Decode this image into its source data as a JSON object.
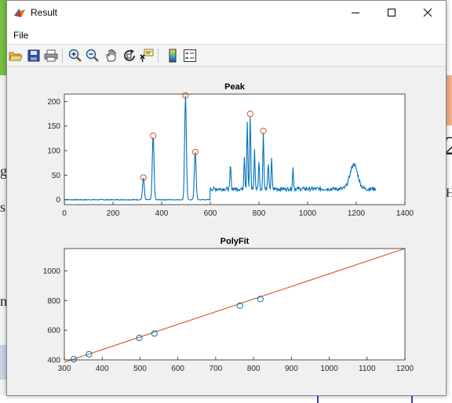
{
  "window": {
    "title": "Result",
    "minimize_icon": "minimize-icon",
    "maximize_icon": "maximize-icon",
    "close_icon": "close-icon"
  },
  "menu": {
    "file": "File"
  },
  "toolbar": {
    "tools": [
      "open-icon",
      "save-icon",
      "print-icon",
      "zoom-in-icon",
      "zoom-out-icon",
      "pan-icon",
      "rotate-3d-icon",
      "data-cursor-icon",
      "colorbar-icon",
      "legend-icon"
    ]
  },
  "background": {
    "glyph_g": "g",
    "glyph_s": "s",
    "glyph_n": "n",
    "glyph_2": "2",
    "glyph_h": "H"
  },
  "colors": {
    "line": "#0072bd",
    "marker": "#d95319",
    "fit": "#d95319",
    "axes_bg": "#ffffff",
    "figure_bg": "#f0f0f0"
  },
  "chart_data": [
    {
      "type": "line",
      "title": "Peak",
      "xlim": [
        0,
        1400
      ],
      "ylim": [
        -10,
        215
      ],
      "xticks": [
        0,
        200,
        400,
        600,
        800,
        1000,
        1200,
        1400
      ],
      "yticks": [
        0,
        50,
        100,
        150,
        200
      ],
      "grid": false,
      "peaks": [
        {
          "x": 325,
          "y": 45
        },
        {
          "x": 365,
          "y": 130
        },
        {
          "x": 498,
          "y": 212
        },
        {
          "x": 538,
          "y": 97
        },
        {
          "x": 764,
          "y": 175
        },
        {
          "x": 818,
          "y": 140
        }
      ],
      "baseline_segments": [
        {
          "x": [
            0,
            600
          ],
          "y": 0
        },
        {
          "x": [
            600,
            1280
          ],
          "y": 22
        }
      ],
      "spectrum_peaks": [
        {
          "x": 325,
          "y": 45,
          "w": 5
        },
        {
          "x": 365,
          "y": 130,
          "w": 5
        },
        {
          "x": 498,
          "y": 212,
          "w": 5
        },
        {
          "x": 538,
          "y": 97,
          "w": 5
        },
        {
          "x": 683,
          "y": 70,
          "w": 3
        },
        {
          "x": 740,
          "y": 90,
          "w": 3
        },
        {
          "x": 752,
          "y": 160,
          "w": 3
        },
        {
          "x": 764,
          "y": 170,
          "w": 3
        },
        {
          "x": 782,
          "y": 100,
          "w": 3
        },
        {
          "x": 800,
          "y": 80,
          "w": 3
        },
        {
          "x": 818,
          "y": 138,
          "w": 3
        },
        {
          "x": 838,
          "y": 75,
          "w": 3
        },
        {
          "x": 852,
          "y": 82,
          "w": 3
        },
        {
          "x": 940,
          "y": 65,
          "w": 3
        },
        {
          "x": 1190,
          "y": 72,
          "w": 22
        }
      ]
    },
    {
      "type": "scatter",
      "title": "PolyFit",
      "xlim": [
        300,
        1200
      ],
      "ylim": [
        400,
        1150
      ],
      "xticks": [
        300,
        400,
        500,
        600,
        700,
        800,
        900,
        1000,
        1100,
        1200
      ],
      "yticks": [
        400,
        600,
        800,
        1000
      ],
      "grid": false,
      "points": [
        {
          "x": 325,
          "y": 405
        },
        {
          "x": 365,
          "y": 438
        },
        {
          "x": 498,
          "y": 548
        },
        {
          "x": 538,
          "y": 578
        },
        {
          "x": 764,
          "y": 765
        },
        {
          "x": 818,
          "y": 810
        }
      ],
      "fit_line": {
        "x": [
          300,
          1200
        ],
        "y": [
          384,
          1150
        ]
      }
    }
  ]
}
